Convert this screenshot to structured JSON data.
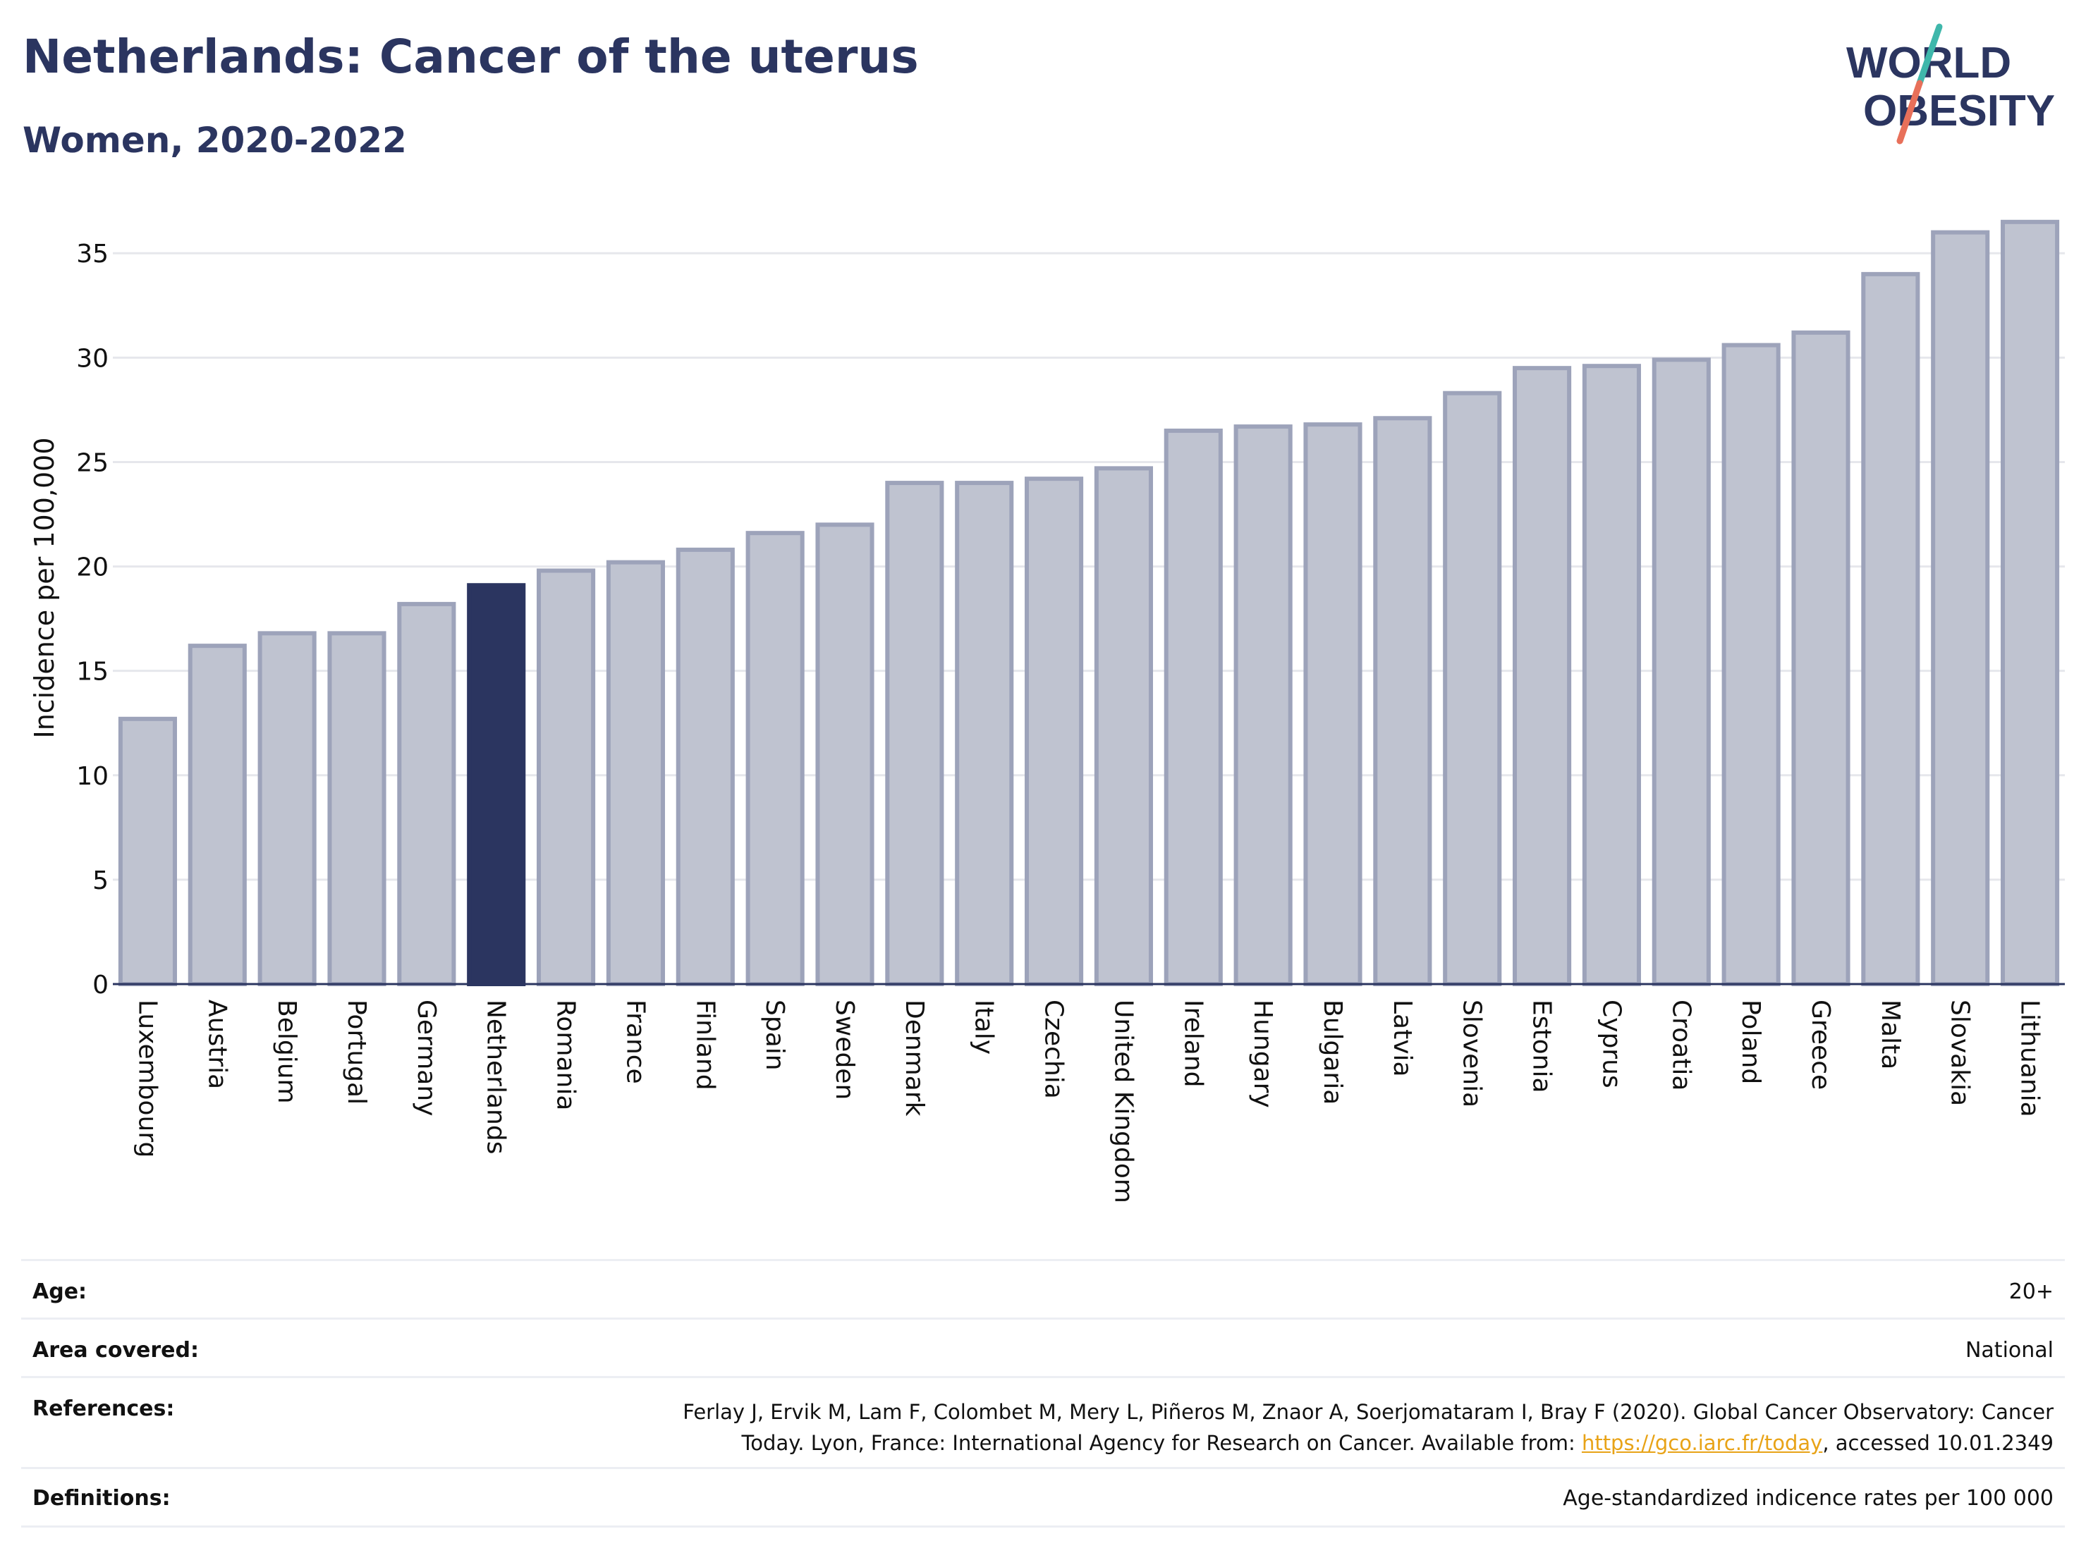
{
  "header": {
    "title": "Netherlands: Cancer of the uterus",
    "subtitle": "Women, 2020-2022",
    "logo_line1": "WORLD",
    "logo_line2": "OBESITY"
  },
  "colors": {
    "highlight": "#2b3560",
    "bar_fill": "#bfc3d0",
    "bar_stroke": "#9da3ba",
    "grid": "#e6e7ec",
    "text": "#2b3560",
    "logo_teal": "#3fb7ab",
    "logo_coral": "#e8705a",
    "link": "#e8a317"
  },
  "chart_data": {
    "type": "bar",
    "title": "Netherlands: Cancer of the uterus",
    "subtitle": "Women, 2020-2022",
    "xlabel": "",
    "ylabel": "Incidence per 100,000",
    "ylim": [
      0,
      37
    ],
    "yticks": [
      0,
      5,
      10,
      15,
      20,
      25,
      30,
      35
    ],
    "grid": true,
    "highlight": "Netherlands",
    "categories": [
      "Luxembourg",
      "Austria",
      "Belgium",
      "Portugal",
      "Germany",
      "Netherlands",
      "Romania",
      "France",
      "Finland",
      "Spain",
      "Sweden",
      "Denmark",
      "Italy",
      "Czechia",
      "United Kingdom",
      "Ireland",
      "Hungary",
      "Bulgaria",
      "Latvia",
      "Slovenia",
      "Estonia",
      "Cyprus",
      "Croatia",
      "Poland",
      "Greece",
      "Malta",
      "Slovakia",
      "Lithuania"
    ],
    "values": [
      12.7,
      16.2,
      16.8,
      16.8,
      18.2,
      19.1,
      19.8,
      20.2,
      20.8,
      21.6,
      22.0,
      24.0,
      24.0,
      24.2,
      24.7,
      26.5,
      26.7,
      26.8,
      27.1,
      28.3,
      29.5,
      29.6,
      29.9,
      30.6,
      31.2,
      34.0,
      36.0,
      36.5
    ]
  },
  "meta": [
    {
      "label": "Age:",
      "value": "20+"
    },
    {
      "label": "Area covered:",
      "value": "National"
    },
    {
      "label": "References:",
      "value_line1": "Ferlay J, Ervik M, Lam F, Colombet M, Mery L, Piñeros M, Znaor A, Soerjomataram I, Bray F (2020). Global Cancer Observatory: Cancer",
      "value_line2_pre": "Today. Lyon, France: International Agency for Research on Cancer. Available from: ",
      "link": "https://gco.iarc.fr/today",
      "value_line2_post": ", accessed 10.01.2349"
    },
    {
      "label": "Definitions:",
      "value": "Age-standardized indicence rates per 100 000"
    }
  ]
}
